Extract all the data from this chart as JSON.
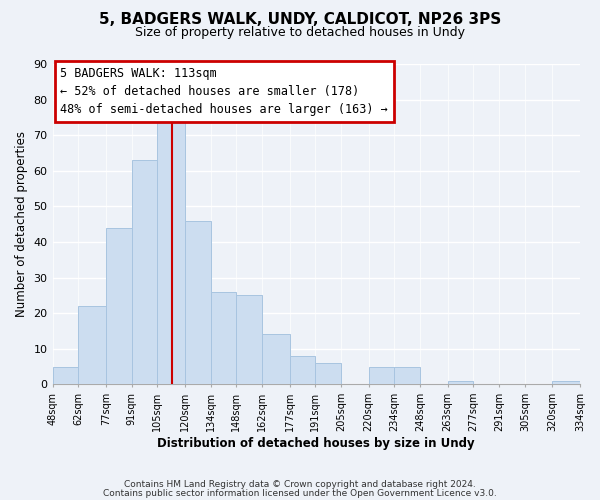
{
  "title": "5, BADGERS WALK, UNDY, CALDICOT, NP26 3PS",
  "subtitle": "Size of property relative to detached houses in Undy",
  "xlabel": "Distribution of detached houses by size in Undy",
  "ylabel": "Number of detached properties",
  "bar_left_edges": [
    48,
    62,
    77,
    91,
    105,
    120,
    134,
    148,
    162,
    177,
    191,
    205,
    220,
    234,
    248,
    263,
    277,
    291,
    305,
    320
  ],
  "bar_heights": [
    5,
    22,
    44,
    63,
    74,
    46,
    26,
    25,
    14,
    8,
    6,
    0,
    5,
    5,
    0,
    1,
    0,
    0,
    0,
    1
  ],
  "bin_labels": [
    "48sqm",
    "62sqm",
    "77sqm",
    "91sqm",
    "105sqm",
    "120sqm",
    "134sqm",
    "148sqm",
    "162sqm",
    "177sqm",
    "191sqm",
    "205sqm",
    "220sqm",
    "234sqm",
    "248sqm",
    "263sqm",
    "277sqm",
    "291sqm",
    "305sqm",
    "320sqm",
    "334sqm"
  ],
  "bar_color": "#ccddf0",
  "bar_edge_color": "#a8c4e0",
  "vline_x": 113,
  "vline_color": "#cc0000",
  "ylim": [
    0,
    90
  ],
  "yticks": [
    0,
    10,
    20,
    30,
    40,
    50,
    60,
    70,
    80,
    90
  ],
  "annotation_title": "5 BADGERS WALK: 113sqm",
  "annotation_line1": "← 52% of detached houses are smaller (178)",
  "annotation_line2": "48% of semi-detached houses are larger (163) →",
  "footer_line1": "Contains HM Land Registry data © Crown copyright and database right 2024.",
  "footer_line2": "Contains public sector information licensed under the Open Government Licence v3.0.",
  "background_color": "#eef2f8"
}
